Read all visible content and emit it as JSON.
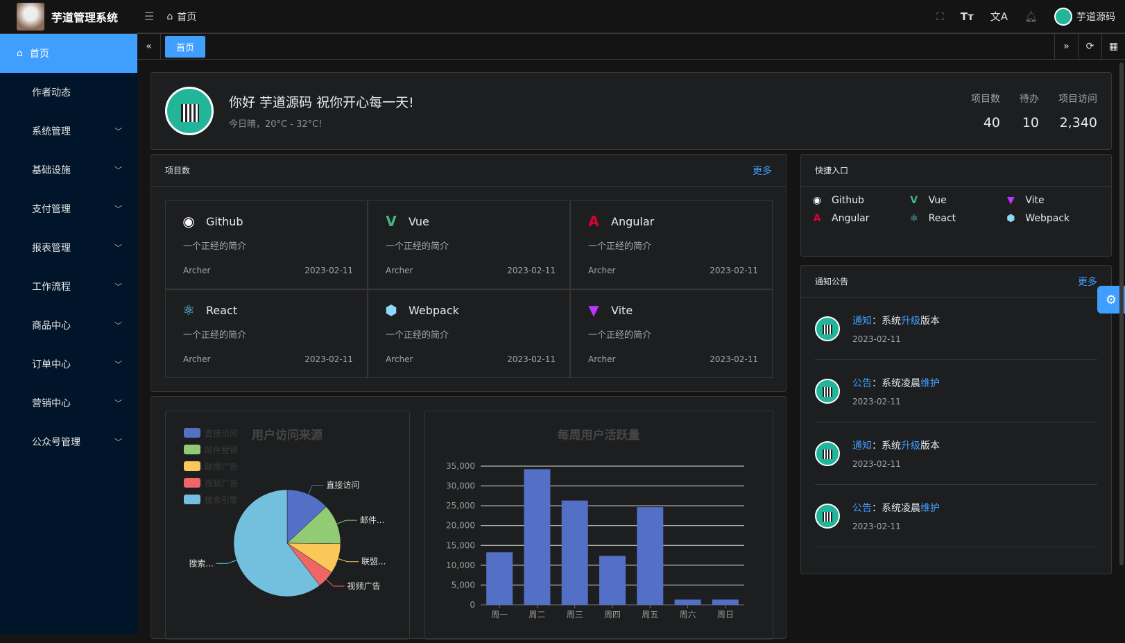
{
  "header": {
    "app_title": "芋道管理系统",
    "breadcrumb": "首页",
    "username": "芋道源码"
  },
  "sidebar": {
    "items": [
      {
        "label": "首页",
        "active": true
      },
      {
        "label": "作者动态"
      },
      {
        "label": "系统管理",
        "expandable": true
      },
      {
        "label": "基础设施",
        "expandable": true
      },
      {
        "label": "支付管理",
        "expandable": true
      },
      {
        "label": "报表管理",
        "expandable": true
      },
      {
        "label": "工作流程",
        "expandable": true
      },
      {
        "label": "商品中心",
        "expandable": true
      },
      {
        "label": "订单中心",
        "expandable": true
      },
      {
        "label": "营销中心",
        "expandable": true
      },
      {
        "label": "公众号管理",
        "expandable": true
      }
    ]
  },
  "tabs": [
    {
      "label": "首页",
      "active": true
    }
  ],
  "welcome": {
    "greeting": "你好 芋道源码 祝你开心每一天!",
    "weather": "今日晴，20°C - 32°C!",
    "stats": [
      {
        "label": "项目数",
        "value": "40"
      },
      {
        "label": "待办",
        "value": "10"
      },
      {
        "label": "项目访问",
        "value": "2,340"
      }
    ]
  },
  "projects": {
    "title": "项目数",
    "more": "更多",
    "items": [
      {
        "name": "Github",
        "desc": "一个正经的简介",
        "author": "Archer",
        "date": "2023-02-11",
        "icon": "github-icon",
        "color": "#ffffff"
      },
      {
        "name": "Vue",
        "desc": "一个正经的简介",
        "author": "Archer",
        "date": "2023-02-11",
        "icon": "vue-icon",
        "color": "#42b883"
      },
      {
        "name": "Angular",
        "desc": "一个正经的简介",
        "author": "Archer",
        "date": "2023-02-11",
        "icon": "angular-icon",
        "color": "#dd0031"
      },
      {
        "name": "React",
        "desc": "一个正经的简介",
        "author": "Archer",
        "date": "2023-02-11",
        "icon": "react-icon",
        "color": "#61dafb"
      },
      {
        "name": "Webpack",
        "desc": "一个正经的简介",
        "author": "Archer",
        "date": "2023-02-11",
        "icon": "webpack-icon",
        "color": "#8ed6fb"
      },
      {
        "name": "Vite",
        "desc": "一个正经的简介",
        "author": "Archer",
        "date": "2023-02-11",
        "icon": "vite-icon",
        "color": "#bd34fe"
      }
    ]
  },
  "quick": {
    "title": "快捷入口",
    "items": [
      "Github",
      "Vue",
      "Vite",
      "Angular",
      "React",
      "Webpack"
    ]
  },
  "notice": {
    "title": "通知公告",
    "more": "更多",
    "items": [
      {
        "type": "通知",
        "sep": "：",
        "pre": "系统",
        "hl": "升级",
        "post": "版本",
        "date": "2023-02-11"
      },
      {
        "type": "公告",
        "sep": "：",
        "pre": "系统凌晨",
        "hl": "维护",
        "post": "",
        "date": "2023-02-11"
      },
      {
        "type": "通知",
        "sep": "：",
        "pre": "系统",
        "hl": "升级",
        "post": "版本",
        "date": "2023-02-11"
      },
      {
        "type": "公告",
        "sep": "：",
        "pre": "系统凌晨",
        "hl": "维护",
        "post": "",
        "date": "2023-02-11"
      }
    ]
  },
  "chart_data": [
    {
      "type": "pie",
      "title": "用户访问来源",
      "legend_placement": "top-left",
      "categories": [
        "直接访问",
        "邮件营销",
        "联盟广告",
        "视频广告",
        "搜索引擎"
      ],
      "slice_labels": [
        "直接访问",
        "邮件...",
        "联盟...",
        "视频广告",
        "搜索..."
      ],
      "values": [
        335,
        310,
        234,
        135,
        1548
      ],
      "colors": [
        "#5470c6",
        "#91cc75",
        "#fac858",
        "#ee6666",
        "#73c0de"
      ]
    },
    {
      "type": "bar",
      "title": "每周用户活跃量",
      "categories": [
        "周一",
        "周二",
        "周三",
        "周四",
        "周五",
        "周六",
        "周日"
      ],
      "values": [
        13253,
        34235,
        26321,
        12340,
        24643,
        1322,
        1324
      ],
      "ylim": [
        0,
        35000
      ],
      "yticks": [
        "0",
        "5,000",
        "10,000",
        "15,000",
        "20,000",
        "25,000",
        "30,000",
        "35,000"
      ],
      "grid": true,
      "color": "#5470c6"
    }
  ]
}
